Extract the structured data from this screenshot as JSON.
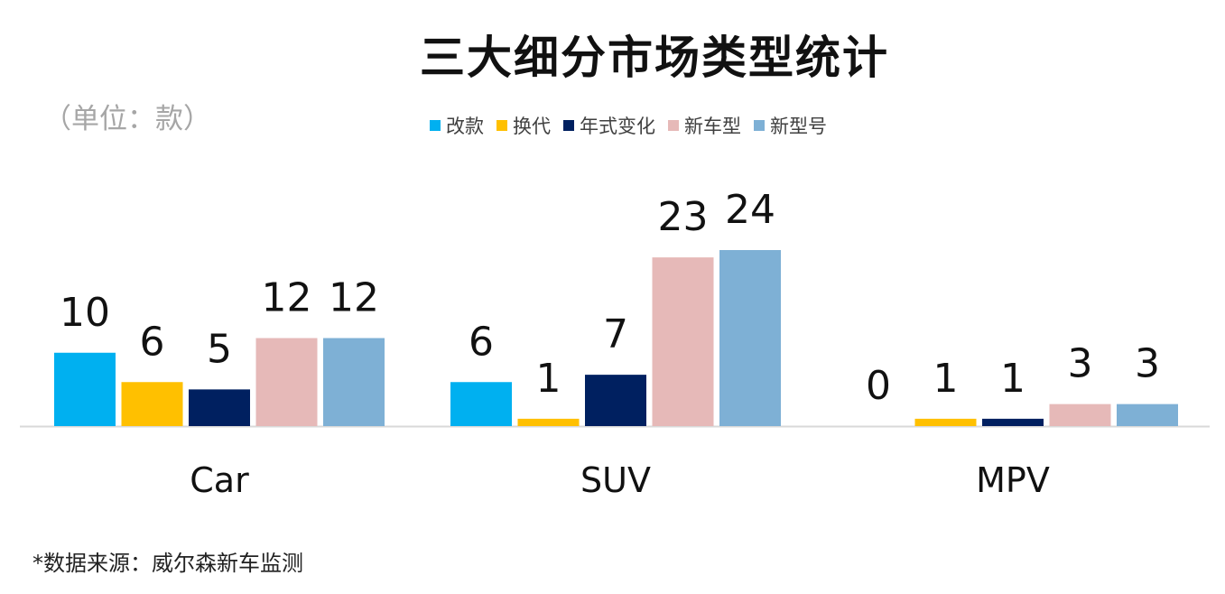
{
  "chart_data": {
    "type": "bar",
    "title": "三大细分市场类型统计",
    "unit_label": "（单位：款）",
    "categories": [
      "Car",
      "SUV",
      "MPV"
    ],
    "series": [
      {
        "name": "改款",
        "color": "#00b0f0",
        "values": [
          10,
          6,
          0
        ]
      },
      {
        "name": "换代",
        "color": "#ffc000",
        "values": [
          6,
          1,
          1
        ]
      },
      {
        "name": "年式变化",
        "color": "#002060",
        "values": [
          5,
          7,
          1
        ]
      },
      {
        "name": "新车型",
        "color": "#e6b9b8",
        "values": [
          12,
          23,
          3
        ]
      },
      {
        "name": "新型号",
        "color": "#7eb0d5",
        "values": [
          12,
          24,
          3
        ]
      }
    ],
    "ylim": [
      0,
      24
    ],
    "data_labels": true,
    "grid": false,
    "legend_position": "top",
    "source_note": "*数据来源：威尔森新车监测"
  }
}
